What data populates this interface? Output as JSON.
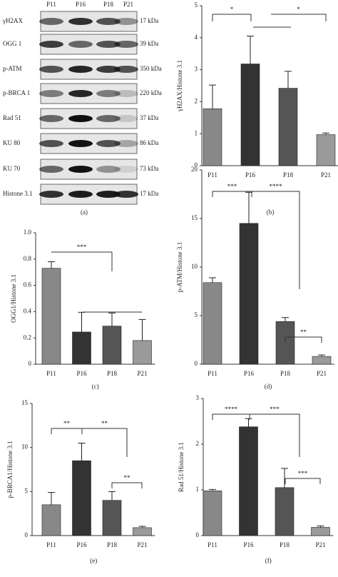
{
  "blot": {
    "lanes": [
      "P11",
      "P16",
      "P18",
      "P21"
    ],
    "rows": [
      {
        "protein": "γH2AX",
        "size": "17 kDa"
      },
      {
        "protein": "OGG 1",
        "size": "39 kDa"
      },
      {
        "protein": "p-ATM",
        "size": "350 kDa"
      },
      {
        "protein": "p-BRCA 1",
        "size": "220 kDa"
      },
      {
        "protein": "Rad 51",
        "size": "37 kDa"
      },
      {
        "protein": "KU 80",
        "size": "86 kDa"
      },
      {
        "protein": "KU 70",
        "size": "73 kDa"
      },
      {
        "protein": "Histone 3.1",
        "size": "17 kDa"
      }
    ],
    "caption": "(a)"
  },
  "chart_data": [
    {
      "type": "bar",
      "ylabel": "γH2AX/Histone 3.1",
      "categories": [
        "P11",
        "P16",
        "P18",
        "P21"
      ],
      "values": [
        1.78,
        3.18,
        2.42,
        0.97
      ],
      "errors": [
        0.74,
        0.87,
        0.53,
        0.05
      ],
      "colors": [
        "#888888",
        "#333333",
        "#555555",
        "#9a9a9a"
      ],
      "ylim": [
        0,
        5
      ],
      "yticks": [
        0,
        1,
        2,
        3,
        4,
        5
      ],
      "annotations": [
        "*",
        "*"
      ],
      "caption": "(b)"
    },
    {
      "type": "bar",
      "ylabel": "OGG1/Histone 3.1",
      "categories": [
        "P11",
        "P16",
        "P18",
        "P21"
      ],
      "values": [
        0.73,
        0.245,
        0.29,
        0.18
      ],
      "errors": [
        0.05,
        0.15,
        0.1,
        0.16
      ],
      "colors": [
        "#888888",
        "#333333",
        "#555555",
        "#9a9a9a"
      ],
      "ylim": [
        0,
        1
      ],
      "yticks": [
        0,
        0.2,
        0.4,
        0.6,
        0.8,
        {
          "value": 1,
          "label": "1.0"
        }
      ],
      "annotations": [
        "***"
      ],
      "caption": "(c)"
    },
    {
      "type": "bar",
      "ylabel": "p-ATM/Histone 3.1",
      "categories": [
        "P11",
        "P16",
        "P18",
        "P21"
      ],
      "values": [
        8.4,
        14.5,
        4.4,
        0.8
      ],
      "errors": [
        0.5,
        3.2,
        0.4,
        0.15
      ],
      "colors": [
        "#888888",
        "#333333",
        "#555555",
        "#9a9a9a"
      ],
      "ylim": [
        0,
        20
      ],
      "yticks": [
        0,
        5,
        10,
        15,
        20
      ],
      "annotations": [
        "***",
        "****",
        "**"
      ],
      "caption": "(d)"
    },
    {
      "type": "bar",
      "ylabel": "p-BRCA1/Histone 3.1",
      "categories": [
        "P11",
        "P16",
        "P18",
        "P21"
      ],
      "values": [
        3.5,
        8.5,
        4.0,
        0.9
      ],
      "errors": [
        1.4,
        2.0,
        1.0,
        0.15
      ],
      "colors": [
        "#888888",
        "#333333",
        "#555555",
        "#9a9a9a"
      ],
      "ylim": [
        0,
        15
      ],
      "yticks": [
        0,
        5,
        10,
        15
      ],
      "annotations": [
        "**",
        "**",
        "**"
      ],
      "caption": "(e)"
    },
    {
      "type": "bar",
      "ylabel": "Rad 51/Histone 3.1",
      "categories": [
        "P11",
        "P16",
        "P18",
        "P21"
      ],
      "values": [
        0.98,
        2.38,
        1.05,
        0.18
      ],
      "errors": [
        0.03,
        0.18,
        0.42,
        0.03
      ],
      "colors": [
        "#888888",
        "#333333",
        "#555555",
        "#9a9a9a"
      ],
      "ylim": [
        0,
        3
      ],
      "yticks": [
        0,
        1,
        2,
        3
      ],
      "annotations": [
        "****",
        "***",
        "***"
      ],
      "caption": "(f)"
    }
  ]
}
